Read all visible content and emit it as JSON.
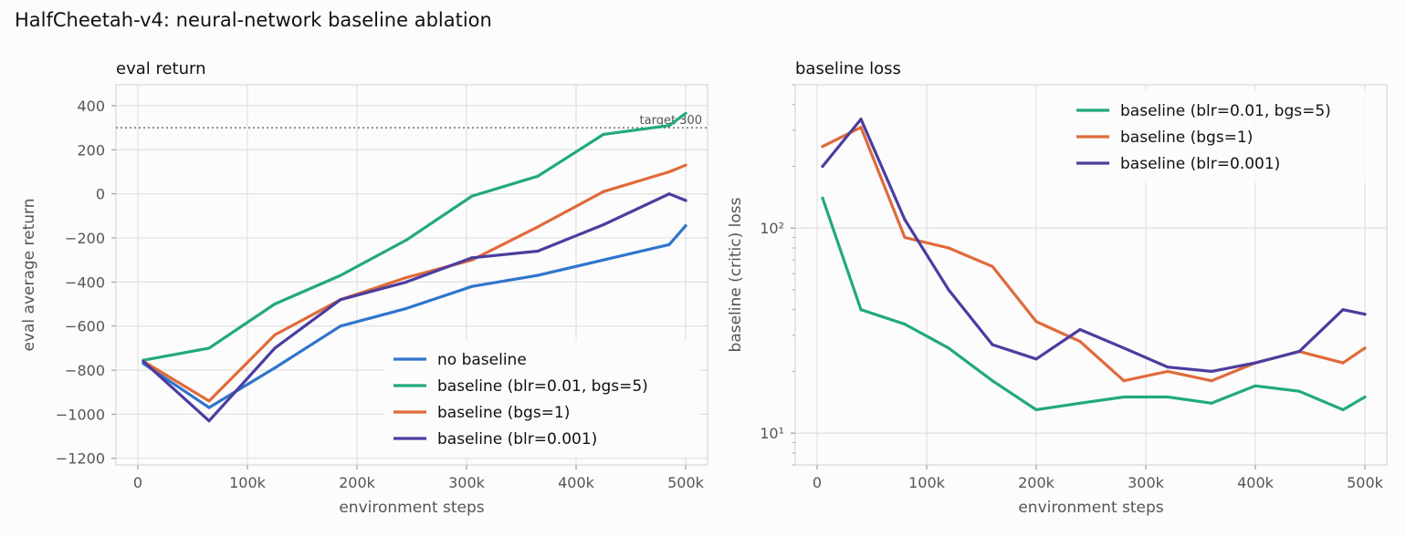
{
  "suptitle": "HalfCheetah-v4: neural-network baseline ablation",
  "chart_data": [
    {
      "type": "line",
      "title": "eval return",
      "xlabel": "environment steps",
      "ylabel": "eval average return",
      "xlim": [
        -20000,
        520000
      ],
      "ylim": [
        -1230,
        495
      ],
      "x_ticks": [
        0,
        100000,
        200000,
        300000,
        400000,
        500000
      ],
      "x_tick_labels": [
        "0",
        "100k",
        "200k",
        "300k",
        "400k",
        "500k"
      ],
      "y_ticks": [
        -1200,
        -1000,
        -800,
        -600,
        -400,
        -200,
        0,
        200,
        400
      ],
      "y_tick_labels": [
        "−1200",
        "−1000",
        "−800",
        "−600",
        "−400",
        "−200",
        "0",
        "200",
        "400"
      ],
      "grid": true,
      "legend_position": "lower-right",
      "reference_line": {
        "y": 300,
        "label": "target 300",
        "style": "dotted"
      },
      "x": [
        5000,
        65000,
        125000,
        185000,
        245000,
        305000,
        365000,
        425000,
        485000,
        500000
      ],
      "series": [
        {
          "name": "no baseline",
          "color": "#3075cc",
          "values": [
            -770,
            -970,
            -790,
            -600,
            -520,
            -420,
            -370,
            -300,
            -230,
            -145
          ]
        },
        {
          "name": "baseline (blr=0.01, bgs=5)",
          "color": "#22aa77",
          "values": [
            -755,
            -700,
            -500,
            -370,
            -210,
            -10,
            80,
            270,
            310,
            365
          ]
        },
        {
          "name": "baseline (bgs=1)",
          "color": "#e06a3a",
          "values": [
            -760,
            -940,
            -640,
            -480,
            -380,
            -300,
            -150,
            10,
            100,
            130
          ]
        },
        {
          "name": "baseline (blr=0.001)",
          "color": "#4c3d9f",
          "values": [
            -760,
            -1030,
            -700,
            -480,
            -400,
            -290,
            -260,
            -140,
            0,
            -30
          ]
        }
      ]
    },
    {
      "type": "line",
      "title": "baseline loss",
      "xlabel": "environment steps",
      "ylabel": "baseline (critic) loss",
      "y_scale": "log",
      "xlim": [
        -20000,
        520000
      ],
      "ylim": [
        7,
        500
      ],
      "x_ticks": [
        0,
        100000,
        200000,
        300000,
        400000,
        500000
      ],
      "x_tick_labels": [
        "0",
        "100k",
        "200k",
        "300k",
        "400k",
        "500k"
      ],
      "y_ticks": [
        10,
        100
      ],
      "y_tick_labels": [
        "10¹",
        "10²"
      ],
      "grid": true,
      "legend_position": "top-right",
      "x": [
        5000,
        40000,
        80000,
        120000,
        160000,
        200000,
        240000,
        280000,
        320000,
        360000,
        400000,
        440000,
        480000,
        500000
      ],
      "series": [
        {
          "name": "baseline (blr=0.01, bgs=5)",
          "color": "#22aa77",
          "values": [
            140,
            40,
            34,
            26,
            18,
            13,
            14,
            15,
            15,
            14,
            17,
            16,
            13,
            15
          ]
        },
        {
          "name": "baseline (bgs=1)",
          "color": "#e06a3a",
          "values": [
            250,
            310,
            90,
            80,
            65,
            35,
            28,
            18,
            20,
            18,
            22,
            25,
            22,
            26
          ]
        },
        {
          "name": "baseline (blr=0.001)",
          "color": "#4c3d9f",
          "values": [
            200,
            340,
            110,
            50,
            27,
            23,
            32,
            26,
            21,
            20,
            22,
            25,
            40,
            38
          ]
        }
      ]
    }
  ]
}
